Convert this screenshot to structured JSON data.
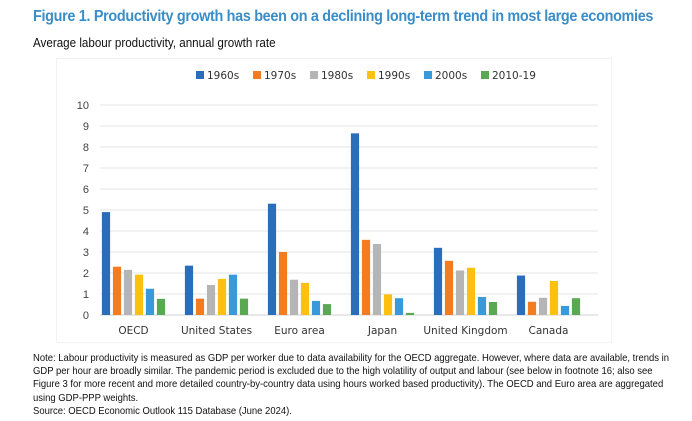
{
  "header": {
    "title": "Figure 1. Productivity growth has been on a declining long-term trend in most large economies",
    "subtitle": "Average labour productivity, annual growth rate"
  },
  "chart_data": {
    "type": "bar",
    "title": "Figure 1. Productivity growth has been on a declining long-term trend in most large economies",
    "subtitle": "Average labour productivity, annual growth rate",
    "xlabel": "",
    "ylabel": "",
    "ylim": [
      0,
      10
    ],
    "yticks": [
      0,
      1,
      2,
      3,
      4,
      5,
      6,
      7,
      8,
      9,
      10
    ],
    "grid": true,
    "legend_position": "top",
    "categories": [
      "OECD",
      "United States",
      "Euro area",
      "Japan",
      "United Kingdom",
      "Canada"
    ],
    "series": [
      {
        "name": "1960s",
        "color": "#2a6ebb",
        "values": [
          4.9,
          2.35,
          5.3,
          8.65,
          3.2,
          1.88
        ]
      },
      {
        "name": "1970s",
        "color": "#f47c20",
        "values": [
          2.3,
          0.78,
          3.0,
          3.58,
          2.58,
          0.63
        ]
      },
      {
        "name": "1980s",
        "color": "#b5b5b5",
        "values": [
          2.15,
          1.43,
          1.68,
          3.38,
          2.12,
          0.82
        ]
      },
      {
        "name": "1990s",
        "color": "#fdc010",
        "values": [
          1.92,
          1.72,
          1.53,
          0.98,
          2.25,
          1.62
        ]
      },
      {
        "name": "2000s",
        "color": "#3a9ad9",
        "values": [
          1.25,
          1.92,
          0.67,
          0.8,
          0.86,
          0.43
        ]
      },
      {
        "name": "2010-19",
        "color": "#5aa952",
        "values": [
          0.77,
          0.78,
          0.52,
          0.1,
          0.62,
          0.8
        ]
      }
    ]
  },
  "footer": {
    "note": "Note: Labour productivity is measured as GDP per worker due to data availability for the OECD aggregate. However, where data are available, trends in GDP per hour are broadly similar. The pandemic period is excluded due to the high volatility of output and labour (see below in footnote 16; also see Figure 3 for more recent and more detailed country-by-country data using hours worked based productivity). The OECD and Euro area are aggregated using GDP-PPP weights.",
    "source": "Source: OECD Economic Outlook 115 Database (June 2024)."
  }
}
